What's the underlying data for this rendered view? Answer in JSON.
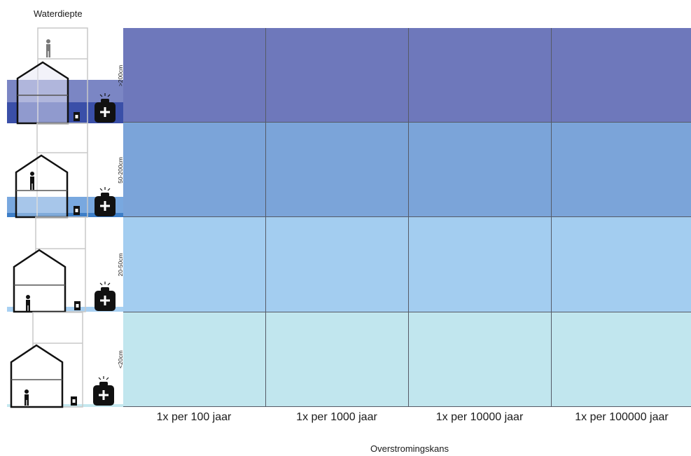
{
  "ylabel": "Waterdiepte",
  "xlabel": "Overstromingskans",
  "rows": [
    {
      "label": ">200cm",
      "color": "#6e78bb"
    },
    {
      "label": "50-200cm",
      "color": "#7ba4d9"
    },
    {
      "label": "20-50cm",
      "color": "#a3cdf0"
    },
    {
      "label": "<20cm",
      "color": "#c1e6ee"
    }
  ],
  "columns": [
    {
      "label": "1x per 100 jaar"
    },
    {
      "label": "1x per 1000 jaar"
    },
    {
      "label": "1x per 10000 jaar"
    },
    {
      "label": "1x per 100000 jaar"
    }
  ],
  "icons": [
    "house-icon",
    "person-icon",
    "ambulance-icon",
    "electrical-box-icon"
  ]
}
